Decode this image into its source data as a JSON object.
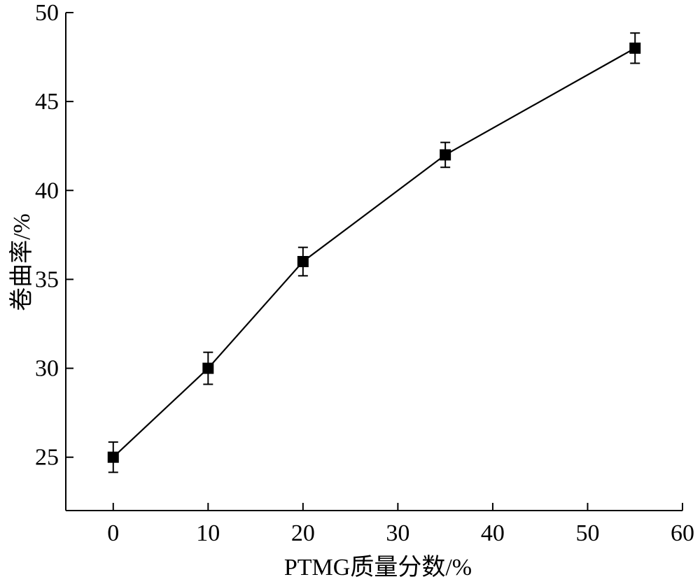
{
  "chart_data": {
    "type": "line",
    "title": "",
    "xlabel": "PTMG质量分数/%",
    "ylabel": "卷曲率/%",
    "xlim": [
      -5,
      60
    ],
    "ylim": [
      22,
      50
    ],
    "x_ticks": [
      0,
      10,
      20,
      30,
      40,
      50,
      60
    ],
    "y_ticks": [
      25,
      30,
      35,
      40,
      45,
      50
    ],
    "grid": false,
    "legend": "none",
    "marker": "square",
    "error_bars": true,
    "series": [
      {
        "x": [
          0,
          10,
          20,
          35,
          55
        ],
        "y": [
          25,
          30,
          36,
          42,
          48
        ],
        "error": [
          0.85,
          0.9,
          0.8,
          0.7,
          0.85
        ]
      }
    ],
    "colors": {
      "line": "#000000",
      "marker": "#000000",
      "axis": "#000000"
    }
  }
}
